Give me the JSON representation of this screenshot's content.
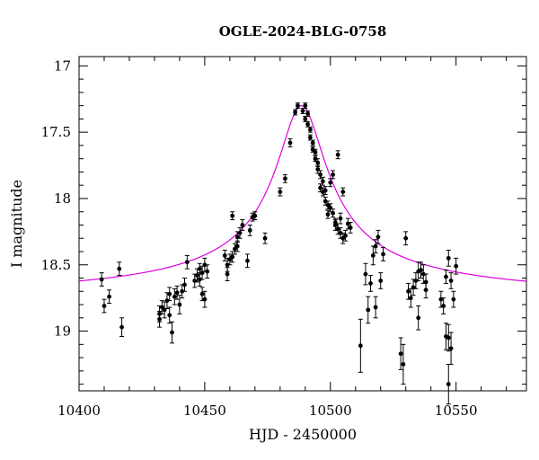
{
  "chart_data": {
    "type": "scatter",
    "title": "OGLE-2024-BLG-0758",
    "xlabel": "HJD - 2450000",
    "ylabel": "I magnitude",
    "xlim": [
      10400,
      10578
    ],
    "ylim": [
      19.45,
      16.93
    ],
    "y_inverted": true,
    "grid": false,
    "x_ticks": [
      10400,
      10450,
      10500,
      10550
    ],
    "x_tick_labels": [
      "10400",
      "10450",
      "10500",
      "10550"
    ],
    "y_ticks": [
      17,
      17.5,
      18,
      18.5,
      19
    ],
    "y_tick_labels": [
      "17",
      "17.5",
      "18",
      "18.5",
      "19"
    ],
    "colors": {
      "points": "#000000",
      "model": "#e000e0"
    },
    "model": {
      "t0": 10488.5,
      "base": 18.78,
      "peak": 17.3,
      "tau": 9.5
    },
    "series": [
      {
        "kind": "observations",
        "points": [
          [
            10409,
            18.61,
            0.05
          ],
          [
            10410,
            18.81,
            0.05
          ],
          [
            10412,
            18.74,
            0.05
          ],
          [
            10416,
            18.53,
            0.05
          ],
          [
            10417,
            18.97,
            0.07
          ],
          [
            10432,
            18.87,
            0.06
          ],
          [
            10432,
            18.91,
            0.06
          ],
          [
            10433,
            18.82,
            0.05
          ],
          [
            10434,
            18.84,
            0.06
          ],
          [
            10435,
            18.77,
            0.06
          ],
          [
            10436,
            18.72,
            0.05
          ],
          [
            10436,
            18.88,
            0.06
          ],
          [
            10437,
            19.01,
            0.08
          ],
          [
            10438,
            18.74,
            0.06
          ],
          [
            10439,
            18.71,
            0.05
          ],
          [
            10440,
            18.8,
            0.07
          ],
          [
            10441,
            18.7,
            0.05
          ],
          [
            10442,
            18.65,
            0.05
          ],
          [
            10443,
            18.48,
            0.05
          ],
          [
            10446,
            18.62,
            0.05
          ],
          [
            10447,
            18.58,
            0.05
          ],
          [
            10448,
            18.53,
            0.04
          ],
          [
            10448,
            18.61,
            0.05
          ],
          [
            10449,
            18.56,
            0.05
          ],
          [
            10449,
            18.72,
            0.05
          ],
          [
            10450,
            18.5,
            0.05
          ],
          [
            10450,
            18.76,
            0.06
          ],
          [
            10451,
            18.55,
            0.05
          ],
          [
            10458,
            18.43,
            0.04
          ],
          [
            10459,
            18.5,
            0.05
          ],
          [
            10459,
            18.57,
            0.05
          ],
          [
            10460,
            18.46,
            0.04
          ],
          [
            10461,
            18.44,
            0.04
          ],
          [
            10461,
            18.13,
            0.03
          ],
          [
            10462,
            18.38,
            0.04
          ],
          [
            10463,
            18.36,
            0.04
          ],
          [
            10463,
            18.29,
            0.04
          ],
          [
            10464,
            18.26,
            0.04
          ],
          [
            10465,
            18.2,
            0.04
          ],
          [
            10467,
            18.47,
            0.05
          ],
          [
            10468,
            18.24,
            0.04
          ],
          [
            10469,
            18.14,
            0.03
          ],
          [
            10470,
            18.13,
            0.03
          ],
          [
            10474,
            18.3,
            0.04
          ],
          [
            10480,
            17.95,
            0.03
          ],
          [
            10482,
            17.85,
            0.03
          ],
          [
            10484,
            17.58,
            0.03
          ],
          [
            10486,
            17.35,
            0.02
          ],
          [
            10487,
            17.3,
            0.02
          ],
          [
            10489,
            17.34,
            0.02
          ],
          [
            10490,
            17.3,
            0.02
          ],
          [
            10490,
            17.4,
            0.02
          ],
          [
            10491,
            17.44,
            0.02
          ],
          [
            10491,
            17.36,
            0.02
          ],
          [
            10492,
            17.48,
            0.02
          ],
          [
            10492,
            17.54,
            0.02
          ],
          [
            10493,
            17.58,
            0.02
          ],
          [
            10493,
            17.63,
            0.02
          ],
          [
            10494,
            17.65,
            0.02
          ],
          [
            10494,
            17.7,
            0.02
          ],
          [
            10495,
            17.73,
            0.03
          ],
          [
            10495,
            17.78,
            0.03
          ],
          [
            10496,
            17.82,
            0.03
          ],
          [
            10496,
            17.92,
            0.03
          ],
          [
            10497,
            17.87,
            0.03
          ],
          [
            10497,
            17.95,
            0.03
          ],
          [
            10498,
            17.94,
            0.03
          ],
          [
            10498,
            18.02,
            0.03
          ],
          [
            10499,
            18.05,
            0.03
          ],
          [
            10499,
            18.12,
            0.03
          ],
          [
            10500,
            17.88,
            0.03
          ],
          [
            10500,
            18.07,
            0.03
          ],
          [
            10501,
            18.11,
            0.03
          ],
          [
            10501,
            17.82,
            0.03
          ],
          [
            10502,
            18.18,
            0.03
          ],
          [
            10502,
            18.2,
            0.04
          ],
          [
            10503,
            18.23,
            0.04
          ],
          [
            10503,
            17.67,
            0.03
          ],
          [
            10504,
            18.26,
            0.04
          ],
          [
            10504,
            18.15,
            0.04
          ],
          [
            10505,
            18.3,
            0.04
          ],
          [
            10505,
            17.95,
            0.03
          ],
          [
            10506,
            18.28,
            0.04
          ],
          [
            10507,
            18.19,
            0.04
          ],
          [
            10508,
            18.22,
            0.04
          ],
          [
            10512,
            19.11,
            0.2
          ],
          [
            10514,
            18.57,
            0.08
          ],
          [
            10515,
            18.84,
            0.1
          ],
          [
            10516,
            18.64,
            0.06
          ],
          [
            10517,
            18.43,
            0.07
          ],
          [
            10518,
            18.82,
            0.08
          ],
          [
            10518,
            18.36,
            0.05
          ],
          [
            10519,
            18.29,
            0.05
          ],
          [
            10520,
            18.62,
            0.06
          ],
          [
            10521,
            18.42,
            0.05
          ],
          [
            10528,
            19.17,
            0.12
          ],
          [
            10529,
            19.25,
            0.15
          ],
          [
            10530,
            18.3,
            0.05
          ],
          [
            10531,
            18.7,
            0.06
          ],
          [
            10532,
            18.75,
            0.07
          ],
          [
            10533,
            18.67,
            0.06
          ],
          [
            10534,
            18.62,
            0.06
          ],
          [
            10535,
            18.55,
            0.07
          ],
          [
            10535,
            18.9,
            0.09
          ],
          [
            10536,
            18.54,
            0.06
          ],
          [
            10537,
            18.57,
            0.07
          ],
          [
            10538,
            18.63,
            0.06
          ],
          [
            10538,
            18.69,
            0.06
          ],
          [
            10544,
            18.76,
            0.06
          ],
          [
            10545,
            18.81,
            0.06
          ],
          [
            10546,
            18.59,
            0.05
          ],
          [
            10546,
            19.04,
            0.1
          ],
          [
            10547,
            19.05,
            0.1
          ],
          [
            10547,
            18.45,
            0.06
          ],
          [
            10547,
            19.4,
            0.15
          ],
          [
            10548,
            18.62,
            0.06
          ],
          [
            10548,
            19.13,
            0.12
          ],
          [
            10549,
            18.76,
            0.06
          ],
          [
            10550,
            18.51,
            0.06
          ]
        ]
      },
      {
        "kind": "model",
        "style": "line"
      }
    ]
  }
}
